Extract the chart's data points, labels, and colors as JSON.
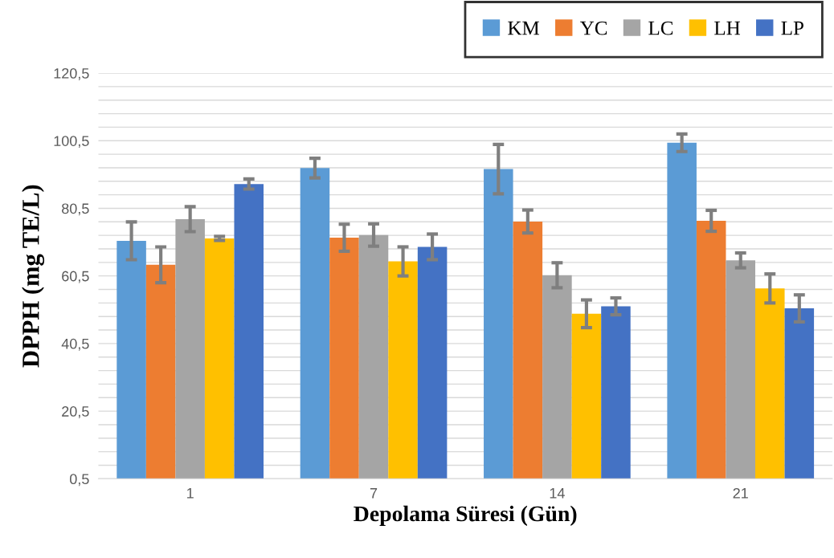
{
  "chart_data": {
    "type": "bar",
    "xlabel": "Depolama Süresi (Gün)",
    "ylabel": "DPPH (mg TE/L)",
    "categories": [
      "1",
      "7",
      "14",
      "21"
    ],
    "series": [
      {
        "name": "KM",
        "color": "#5b9bd5",
        "values": [
          70.9,
          92.4,
          92.1,
          99.9
        ],
        "errors": [
          5.6,
          2.9,
          7.3,
          2.6
        ]
      },
      {
        "name": "YC",
        "color": "#ed7d31",
        "values": [
          63.8,
          71.8,
          76.6,
          76.8
        ],
        "errors": [
          5.3,
          4.0,
          3.4,
          3.1
        ]
      },
      {
        "name": "LC",
        "color": "#a5a5a5",
        "values": [
          77.3,
          72.6,
          60.7,
          65.1
        ],
        "errors": [
          3.7,
          3.3,
          3.7,
          2.2
        ]
      },
      {
        "name": "LH",
        "color": "#ffc000",
        "values": [
          71.6,
          64.8,
          49.3,
          56.8
        ],
        "errors": [
          0.6,
          4.3,
          4.1,
          4.3
        ]
      },
      {
        "name": "LP",
        "color": "#4472c4",
        "values": [
          87.7,
          69.1,
          51.5,
          50.9
        ],
        "errors": [
          1.5,
          3.8,
          2.5,
          4.0
        ]
      }
    ],
    "ylim": [
      0.5,
      120.5
    ],
    "yticks": [
      {
        "value": 0.5,
        "label": "0,5"
      },
      {
        "value": 4.5,
        "label": null
      },
      {
        "value": 8.5,
        "label": null
      },
      {
        "value": 12.5,
        "label": null
      },
      {
        "value": 16.5,
        "label": null
      },
      {
        "value": 20.5,
        "label": "20,5"
      },
      {
        "value": 24.5,
        "label": null
      },
      {
        "value": 28.5,
        "label": null
      },
      {
        "value": 32.5,
        "label": null
      },
      {
        "value": 36.5,
        "label": null
      },
      {
        "value": 40.5,
        "label": "40,5"
      },
      {
        "value": 44.5,
        "label": null
      },
      {
        "value": 48.5,
        "label": null
      },
      {
        "value": 52.5,
        "label": null
      },
      {
        "value": 56.5,
        "label": null
      },
      {
        "value": 60.5,
        "label": "60,5"
      },
      {
        "value": 64.5,
        "label": null
      },
      {
        "value": 68.5,
        "label": null
      },
      {
        "value": 72.5,
        "label": null
      },
      {
        "value": 76.5,
        "label": null
      },
      {
        "value": 80.5,
        "label": "80,5"
      },
      {
        "value": 84.5,
        "label": null
      },
      {
        "value": 88.5,
        "label": null
      },
      {
        "value": 92.5,
        "label": null
      },
      {
        "value": 96.5,
        "label": null
      },
      {
        "value": 100.5,
        "label": "100,5"
      },
      {
        "value": 104.5,
        "label": null
      },
      {
        "value": 108.5,
        "label": null
      },
      {
        "value": 112.5,
        "label": null
      },
      {
        "value": 116.5,
        "label": null
      },
      {
        "value": 120.5,
        "label": "120,5"
      }
    ],
    "grid": "y",
    "legend": "top right"
  }
}
